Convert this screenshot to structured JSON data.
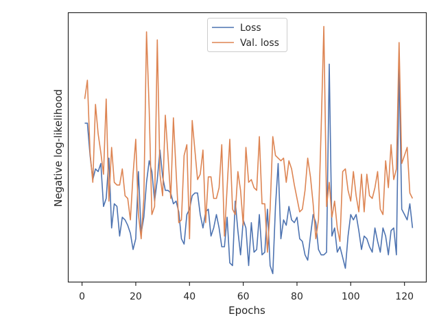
{
  "chart_data": {
    "type": "line",
    "xlabel": "Epochs",
    "ylabel": "Negative log-likelihood",
    "xlim": [
      -5,
      128
    ],
    "ylim": [
      0,
      100
    ],
    "xticks": [
      0,
      20,
      40,
      60,
      80,
      100,
      120
    ],
    "yticks_shown": false,
    "grid": false,
    "legend_position": "upper center",
    "series": [
      {
        "name": "Loss",
        "color": "#4c72b0",
        "x": [
          1,
          2,
          3,
          4,
          5,
          6,
          7,
          8,
          9,
          10,
          11,
          12,
          13,
          14,
          15,
          16,
          17,
          18,
          19,
          20,
          21,
          22,
          23,
          24,
          25,
          26,
          27,
          28,
          29,
          30,
          31,
          32,
          33,
          34,
          35,
          36,
          37,
          38,
          39,
          40,
          41,
          42,
          43,
          44,
          45,
          46,
          47,
          48,
          49,
          50,
          51,
          52,
          53,
          54,
          55,
          56,
          57,
          58,
          59,
          60,
          61,
          62,
          63,
          64,
          65,
          66,
          67,
          68,
          69,
          70,
          71,
          72,
          73,
          74,
          75,
          76,
          77,
          78,
          79,
          80,
          81,
          82,
          83,
          84,
          85,
          86,
          87,
          88,
          89,
          90,
          91,
          92,
          93,
          94,
          95,
          96,
          97,
          98,
          99,
          100,
          101,
          102,
          103,
          104,
          105,
          106,
          107,
          108,
          109,
          110,
          111,
          112,
          113,
          114,
          115,
          116,
          117,
          118,
          119,
          120,
          121,
          122,
          123
        ],
        "values": [
          59,
          59,
          47,
          38,
          42,
          41,
          44,
          28,
          31,
          46,
          20,
          29,
          28,
          17,
          24,
          23,
          21,
          18,
          12,
          16,
          41,
          18,
          24,
          37,
          45,
          41,
          30,
          38,
          49,
          39,
          34,
          34,
          33,
          29,
          30,
          26,
          16,
          14,
          25,
          27,
          32,
          33,
          33,
          25,
          20,
          26,
          27,
          17,
          20,
          25,
          20,
          13,
          13,
          24,
          7,
          6,
          30,
          19,
          10,
          23,
          20,
          6,
          22,
          11,
          12,
          25,
          10,
          11,
          27,
          6,
          3,
          28,
          44,
          16,
          23,
          21,
          28,
          23,
          22,
          24,
          16,
          15,
          10,
          8,
          17,
          25,
          22,
          12,
          10,
          10,
          11,
          81,
          17,
          20,
          11,
          13,
          9,
          5,
          17,
          25,
          23,
          25,
          19,
          12,
          17,
          16,
          13,
          11,
          20,
          15,
          11,
          20,
          17,
          10,
          19,
          20,
          10,
          80,
          27,
          25,
          23,
          29,
          20
        ]
      },
      {
        "name": "Val. loss",
        "color": "#dd8452",
        "x": [
          1,
          2,
          3,
          4,
          5,
          6,
          7,
          8,
          9,
          10,
          11,
          12,
          13,
          14,
          15,
          16,
          17,
          18,
          19,
          20,
          21,
          22,
          23,
          24,
          25,
          26,
          27,
          28,
          29,
          30,
          31,
          32,
          33,
          34,
          35,
          36,
          37,
          38,
          39,
          40,
          41,
          42,
          43,
          44,
          45,
          46,
          47,
          48,
          49,
          50,
          51,
          52,
          53,
          54,
          55,
          56,
          57,
          58,
          59,
          60,
          61,
          62,
          63,
          64,
          65,
          66,
          67,
          68,
          69,
          70,
          71,
          72,
          73,
          74,
          75,
          76,
          77,
          78,
          79,
          80,
          81,
          82,
          83,
          84,
          85,
          86,
          87,
          88,
          89,
          90,
          91,
          92,
          93,
          94,
          95,
          96,
          97,
          98,
          99,
          100,
          101,
          102,
          103,
          104,
          105,
          106,
          107,
          108,
          109,
          110,
          111,
          112,
          113,
          114,
          115,
          116,
          117,
          118,
          119,
          120,
          121,
          122,
          123
        ],
        "values": [
          68,
          75,
          48,
          37,
          66,
          55,
          48,
          40,
          68,
          30,
          50,
          37,
          36,
          36,
          42,
          32,
          31,
          23,
          40,
          53,
          25,
          16,
          31,
          93,
          64,
          25,
          28,
          90,
          40,
          32,
          62,
          47,
          31,
          61,
          41,
          22,
          23,
          47,
          51,
          16,
          60,
          49,
          38,
          40,
          49,
          22,
          39,
          39,
          31,
          31,
          35,
          51,
          17,
          35,
          53,
          27,
          25,
          41,
          34,
          21,
          50,
          37,
          38,
          35,
          34,
          54,
          29,
          29,
          11,
          27,
          54,
          47,
          46,
          45,
          46,
          37,
          45,
          42,
          36,
          31,
          26,
          27,
          34,
          46,
          39,
          29,
          16,
          23,
          57,
          95,
          28,
          37,
          24,
          30,
          20,
          15,
          41,
          42,
          34,
          30,
          41,
          32,
          26,
          40,
          26,
          40,
          32,
          31,
          35,
          41,
          27,
          25,
          45,
          35,
          51,
          38,
          42,
          89,
          44,
          47,
          50,
          33,
          31
        ]
      }
    ]
  }
}
